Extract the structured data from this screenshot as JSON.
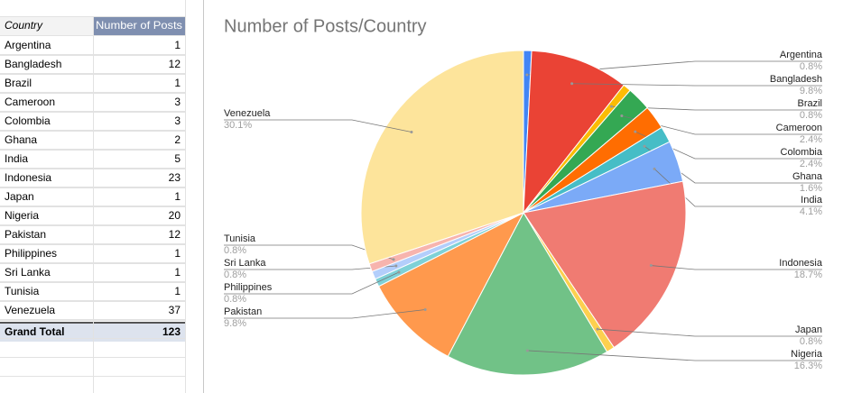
{
  "table": {
    "header": [
      "Country",
      "Number of Posts"
    ],
    "rows": [
      [
        "Argentina",
        "1"
      ],
      [
        "Bangladesh",
        "12"
      ],
      [
        "Brazil",
        "1"
      ],
      [
        "Cameroon",
        "3"
      ],
      [
        "Colombia",
        "3"
      ],
      [
        "Ghana",
        "2"
      ],
      [
        "India",
        "5"
      ],
      [
        "Indonesia",
        "23"
      ],
      [
        "Japan",
        "1"
      ],
      [
        "Nigeria",
        "20"
      ],
      [
        "Pakistan",
        "12"
      ],
      [
        "Philippines",
        "1"
      ],
      [
        "Sri Lanka",
        "1"
      ],
      [
        "Tunisia",
        "1"
      ],
      [
        "Venezuela",
        "37"
      ]
    ],
    "total": [
      "Grand Total",
      "123"
    ]
  },
  "chart_data": {
    "type": "pie",
    "title": "Number of Posts/Country",
    "categories": [
      "Argentina",
      "Bangladesh",
      "Brazil",
      "Cameroon",
      "Colombia",
      "Ghana",
      "India",
      "Indonesia",
      "Japan",
      "Nigeria",
      "Pakistan",
      "Philippines",
      "Sri Lanka",
      "Tunisia",
      "Venezuela"
    ],
    "values": [
      0.8,
      9.8,
      0.8,
      2.4,
      2.4,
      1.6,
      4.1,
      18.7,
      0.8,
      16.3,
      9.8,
      0.8,
      0.8,
      0.8,
      30.1
    ],
    "value_labels": [
      "0.8%",
      "9.8%",
      "0.8%",
      "2.4%",
      "2.4%",
      "1.6%",
      "4.1%",
      "18.7%",
      "0.8%",
      "16.3%",
      "9.8%",
      "0.8%",
      "0.8%",
      "0.8%",
      "30.1%"
    ],
    "colors": [
      "#4285f4",
      "#ea4335",
      "#fbbc04",
      "#34a853",
      "#ff6d01",
      "#46bdc6",
      "#7baaf7",
      "#f07b72",
      "#fcd04f",
      "#71c287",
      "#ff994d",
      "#7ed1d7",
      "#b3cefb",
      "#f7b4ae",
      "#fde49b"
    ]
  }
}
